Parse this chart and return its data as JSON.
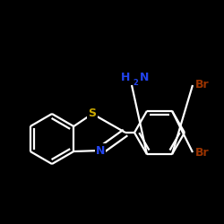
{
  "background": "#000000",
  "bond_color": "#ffffff",
  "S_color": "#ccaa00",
  "N_color": "#2244ee",
  "Br_color": "#993300",
  "bond_width": 1.6,
  "figsize": [
    2.5,
    2.5
  ],
  "dpi": 100,
  "xlim": [
    0,
    250
  ],
  "ylim": [
    0,
    250
  ]
}
